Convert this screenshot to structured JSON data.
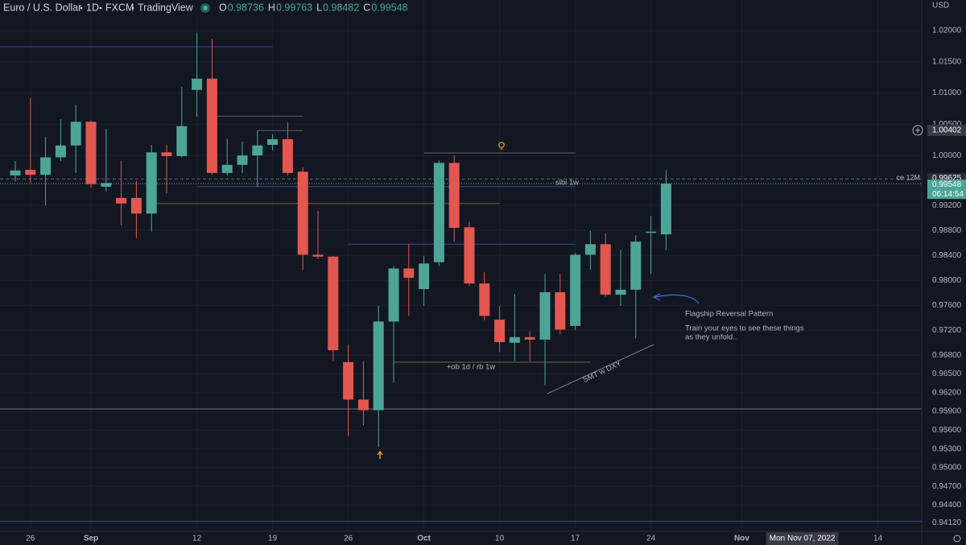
{
  "chart_data": {
    "type": "candlestick",
    "symbol": "Euro / U.S. Dollar",
    "interval": "1D",
    "exchange": "FXCM",
    "source": "TradingView",
    "ohlc_labels": [
      "O",
      "H",
      "L",
      "C"
    ],
    "currency": "USD",
    "up_color": "#4da597",
    "down_color": "#e2574f",
    "x": [
      "2022-08-25",
      "2022-08-26",
      "2022-08-29",
      "2022-08-30",
      "2022-08-31",
      "2022-09-01",
      "2022-09-02",
      "2022-09-05",
      "2022-09-06",
      "2022-09-07",
      "2022-09-08",
      "2022-09-09",
      "2022-09-12",
      "2022-09-13",
      "2022-09-14",
      "2022-09-15",
      "2022-09-16",
      "2022-09-19",
      "2022-09-20",
      "2022-09-21",
      "2022-09-22",
      "2022-09-23",
      "2022-09-26",
      "2022-09-27",
      "2022-09-28",
      "2022-09-29",
      "2022-09-30",
      "2022-10-03",
      "2022-10-04",
      "2022-10-05",
      "2022-10-06",
      "2022-10-07",
      "2022-10-10",
      "2022-10-11",
      "2022-10-12",
      "2022-10-13",
      "2022-10-14",
      "2022-10-17",
      "2022-10-18",
      "2022-10-19",
      "2022-10-20",
      "2022-10-21",
      "2022-10-24",
      "2022-10-25"
    ],
    "open": [
      0.9968,
      0.9977,
      0.9969,
      0.9997,
      1.0016,
      1.0054,
      0.995,
      0.9932,
      0.9932,
      0.9907,
      1.0005,
      0.9999,
      1.0105,
      1.0123,
      0.9972,
      0.9985,
      1.0,
      1.0017,
      1.0026,
      0.9974,
      0.9841,
      0.9838,
      0.9669,
      0.9609,
      0.9592,
      0.9734,
      0.9819,
      0.9786,
      0.9829,
      0.9988,
      0.9885,
      0.9795,
      0.9737,
      0.97,
      0.9709,
      0.9705,
      0.9781,
      0.9727,
      0.9841,
      0.9858,
      0.9777,
      0.9785,
      0.9876,
      0.98736
    ],
    "high": [
      0.9991,
      1.0092,
      1.003,
      1.0058,
      1.0081,
      1.0056,
      1.0043,
      0.9991,
      0.9959,
      1.0017,
      1.0017,
      1.011,
      1.0197,
      1.0187,
      1.0027,
      1.0022,
      1.004,
      1.0034,
      1.0053,
      0.9981,
      0.9911,
      0.9839,
      0.9697,
      0.9671,
      0.9759,
      0.9823,
      0.9858,
      0.9839,
      0.9992,
      1.0,
      0.9894,
      0.9813,
      0.9759,
      0.9778,
      0.9718,
      0.981,
      0.981,
      0.9844,
      0.9879,
      0.9875,
      0.9849,
      0.9872,
      0.9903,
      0.99763
    ],
    "low": [
      0.9958,
      0.9955,
      0.992,
      0.9991,
      0.9972,
      0.9948,
      0.9942,
      0.9888,
      0.9868,
      0.9878,
      0.9939,
      0.9997,
      1.0062,
      0.9969,
      0.9968,
      0.9972,
      0.995,
      1.0008,
      0.9968,
      0.9817,
      0.9834,
      0.9671,
      0.9551,
      0.9568,
      0.9533,
      0.9636,
      0.9743,
      0.9759,
      0.9823,
      0.9862,
      0.9791,
      0.9736,
      0.9685,
      0.9671,
      0.9671,
      0.9632,
      0.9714,
      0.972,
      0.9817,
      0.9774,
      0.9759,
      0.9707,
      0.981,
      0.98482
    ],
    "close": [
      0.9976,
      0.9969,
      0.9997,
      1.0016,
      1.0054,
      0.9954,
      0.9956,
      0.9923,
      0.9907,
      1.0005,
      0.9999,
      1.0047,
      1.0123,
      0.9972,
      0.9985,
      1.0,
      1.0016,
      1.0026,
      0.9972,
      0.9841,
      0.9838,
      0.9688,
      0.9609,
      0.9592,
      0.9734,
      0.9819,
      0.9804,
      0.9827,
      0.9988,
      0.9884,
      0.9795,
      0.9743,
      0.9701,
      0.9709,
      0.9705,
      0.9781,
      0.9721,
      0.9841,
      0.9858,
      0.9777,
      0.9785,
      0.9862,
      0.9878,
      0.99548
    ],
    "ylim": [
      0.9398,
      1.0249
    ],
    "yticks": [
      {
        "value": 1.02,
        "label": "1.02000"
      },
      {
        "value": 1.015,
        "label": "1.01500"
      },
      {
        "value": 1.01,
        "label": "1.01000"
      },
      {
        "value": 1.005,
        "label": "1.00500"
      },
      {
        "value": 1,
        "label": "1.00000"
      },
      {
        "value": 0.992,
        "label": "0.99200"
      },
      {
        "value": 0.988,
        "label": "0.98800"
      },
      {
        "value": 0.984,
        "label": "0.98400"
      },
      {
        "value": 0.98,
        "label": "0.98000"
      },
      {
        "value": 0.976,
        "label": "0.97600"
      },
      {
        "value": 0.972,
        "label": "0.97200"
      },
      {
        "value": 0.968,
        "label": "0.96800"
      },
      {
        "value": 0.965,
        "label": "0.96500"
      },
      {
        "value": 0.962,
        "label": "0.96200"
      },
      {
        "value": 0.959,
        "label": "0.95900"
      },
      {
        "value": 0.956,
        "label": "0.95600"
      },
      {
        "value": 0.953,
        "label": "0.95300"
      },
      {
        "value": 0.95,
        "label": "0.95000"
      },
      {
        "value": 0.947,
        "label": "0.94700"
      },
      {
        "value": 0.944,
        "label": "0.94400"
      },
      {
        "value": 0.9412,
        "label": "0.94120"
      }
    ],
    "xticks": [
      {
        "value": "2022-08-26",
        "label": "26"
      },
      {
        "value": "2022-09-01",
        "label": "Sep"
      },
      {
        "value": "2022-09-12",
        "label": "12"
      },
      {
        "value": "2022-09-19",
        "label": "19"
      },
      {
        "value": "2022-09-26",
        "label": "26"
      },
      {
        "value": "2022-10-03",
        "label": "Oct"
      },
      {
        "value": "2022-10-10",
        "label": "10"
      },
      {
        "value": "2022-10-17",
        "label": "17"
      },
      {
        "value": "2022-10-24",
        "label": "24"
      },
      {
        "value": "2022-11-01",
        "label": "Nov"
      },
      {
        "value": "2022-11-14",
        "label": "14"
      }
    ],
    "crosshair": {
      "date": {
        "value": "2022-11-07",
        "label": "Mon Nov 07, 2022"
      },
      "price": 1.00402
    },
    "marked_level": {
      "name": "ce 12M",
      "value": 0.99625
    },
    "countdown": "06:14:54",
    "grid": true,
    "levels": [
      {
        "value": 1.0174,
        "to": "2022-09-19",
        "color": "#3a4699"
      },
      {
        "value": 1.0063,
        "from": "2022-09-13",
        "to": "2022-09-21",
        "color": "#5d606b"
      },
      {
        "value": 1.004,
        "from": "2022-09-16",
        "to": "2022-09-21",
        "color": "#5d606b"
      },
      {
        "value": 1.0004,
        "from": "2022-10-03",
        "to": "2022-10-17",
        "color": "#5d606b"
      },
      {
        "value": 0.995,
        "from": "2022-09-12",
        "to": "2022-10-17",
        "color": "#3a4699"
      },
      {
        "value": 0.9923,
        "from": "2022-09-07",
        "to": "2022-10-10",
        "color": "#7a6138"
      },
      {
        "value": 0.9858,
        "from": "2022-09-26",
        "to": "2022-10-17",
        "color": "#3a4699"
      },
      {
        "value": 0.9669,
        "from": "2022-09-29",
        "to": "2022-10-18",
        "color": "#7a6138"
      },
      {
        "value": 0.9594,
        "color": "#6a6d78"
      },
      {
        "value": 0.9414,
        "color": "#3a4699"
      }
    ],
    "annotations": [
      "sibi 1w",
      "+ob 1d / rb 1w",
      "SMT w DXY",
      "Flagship Reversal Pattern",
      "Train your eyes to see these things",
      "as they unfold.."
    ]
  }
}
